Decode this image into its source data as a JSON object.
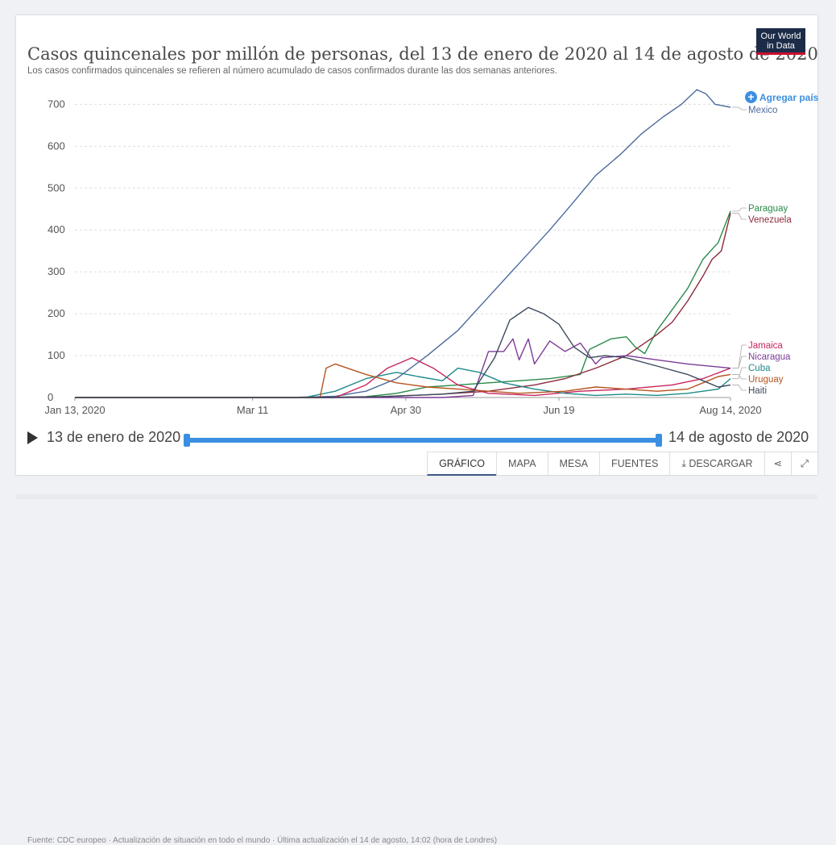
{
  "header": {
    "title": "Casos quincenales por millón de personas, del 13 de enero de 2020 al 14 de agosto de 2020",
    "subtitle": "Los casos confirmados quincenales se refieren al número acumulado de casos confirmados durante las dos semanas anteriores.",
    "logo_line1": "Our World",
    "logo_line2": "in Data",
    "add_country": "Agregar país"
  },
  "timeline": {
    "start_label": "13 de enero de 2020",
    "end_label": "14 de agosto de 2020",
    "source": "Fuente: CDC europeo · Actualización de situación en todo el mundo · Última actualización el 14 de agosto, 14:02 (hora de Londres)"
  },
  "tabs": {
    "chart": "GRÁFICO",
    "map": "MAPA",
    "table": "MESA",
    "sources": "FUENTES",
    "download": "DESCARGAR"
  },
  "chart_data": {
    "type": "line",
    "x_ticks": [
      "Jan 13, 2020",
      "Mar 11",
      "Apr 30",
      "Jun 19",
      "Aug 14, 2020"
    ],
    "x_tick_days": [
      0,
      58,
      108,
      158,
      214
    ],
    "xlim": [
      0,
      214
    ],
    "ylim": [
      0,
      720
    ],
    "y_ticks": [
      0,
      100,
      200,
      300,
      400,
      500,
      600,
      700
    ],
    "grid": true,
    "series": [
      {
        "name": "Mexico",
        "color": "#4c6a9c",
        "points": [
          [
            0,
            0
          ],
          [
            70,
            0
          ],
          [
            85,
            3
          ],
          [
            95,
            15
          ],
          [
            105,
            45
          ],
          [
            115,
            100
          ],
          [
            125,
            160
          ],
          [
            135,
            240
          ],
          [
            145,
            320
          ],
          [
            155,
            400
          ],
          [
            162,
            460
          ],
          [
            170,
            530
          ],
          [
            178,
            580
          ],
          [
            185,
            630
          ],
          [
            192,
            670
          ],
          [
            198,
            700
          ],
          [
            203,
            735
          ],
          [
            206,
            725
          ],
          [
            209,
            700
          ],
          [
            214,
            693
          ]
        ]
      },
      {
        "name": "Paraguay",
        "color": "#2a8a4a",
        "points": [
          [
            0,
            0
          ],
          [
            80,
            0
          ],
          [
            95,
            2
          ],
          [
            105,
            10
          ],
          [
            115,
            25
          ],
          [
            125,
            30
          ],
          [
            135,
            35
          ],
          [
            145,
            40
          ],
          [
            155,
            45
          ],
          [
            165,
            55
          ],
          [
            168,
            115
          ],
          [
            175,
            140
          ],
          [
            180,
            145
          ],
          [
            183,
            120
          ],
          [
            186,
            105
          ],
          [
            190,
            160
          ],
          [
            195,
            210
          ],
          [
            200,
            260
          ],
          [
            205,
            330
          ],
          [
            210,
            370
          ],
          [
            214,
            445
          ]
        ]
      },
      {
        "name": "Venezuela",
        "color": "#8b2a3a",
        "points": [
          [
            0,
            0
          ],
          [
            80,
            0
          ],
          [
            100,
            2
          ],
          [
            120,
            8
          ],
          [
            135,
            15
          ],
          [
            150,
            30
          ],
          [
            160,
            45
          ],
          [
            170,
            70
          ],
          [
            180,
            100
          ],
          [
            190,
            150
          ],
          [
            195,
            180
          ],
          [
            200,
            230
          ],
          [
            205,
            290
          ],
          [
            208,
            330
          ],
          [
            211,
            350
          ],
          [
            214,
            440
          ]
        ]
      },
      {
        "name": "Jamaica",
        "color": "#c9245e",
        "points": [
          [
            0,
            0
          ],
          [
            85,
            0
          ],
          [
            95,
            30
          ],
          [
            102,
            70
          ],
          [
            110,
            95
          ],
          [
            117,
            70
          ],
          [
            125,
            30
          ],
          [
            135,
            10
          ],
          [
            150,
            5
          ],
          [
            165,
            15
          ],
          [
            180,
            20
          ],
          [
            195,
            30
          ],
          [
            205,
            45
          ],
          [
            214,
            70
          ]
        ]
      },
      {
        "name": "Nicaragua",
        "color": "#7d3c98",
        "points": [
          [
            0,
            0
          ],
          [
            100,
            0
          ],
          [
            120,
            0
          ],
          [
            130,
            5
          ],
          [
            135,
            110
          ],
          [
            140,
            110
          ],
          [
            143,
            140
          ],
          [
            145,
            90
          ],
          [
            148,
            140
          ],
          [
            150,
            80
          ],
          [
            155,
            135
          ],
          [
            160,
            110
          ],
          [
            165,
            130
          ],
          [
            170,
            80
          ],
          [
            172,
            95
          ],
          [
            180,
            100
          ],
          [
            190,
            90
          ],
          [
            200,
            80
          ],
          [
            214,
            70
          ]
        ]
      },
      {
        "name": "Cuba",
        "color": "#1f8a8a",
        "points": [
          [
            0,
            0
          ],
          [
            75,
            0
          ],
          [
            85,
            15
          ],
          [
            95,
            45
          ],
          [
            105,
            60
          ],
          [
            112,
            50
          ],
          [
            120,
            40
          ],
          [
            125,
            70
          ],
          [
            132,
            60
          ],
          [
            140,
            35
          ],
          [
            150,
            20
          ],
          [
            160,
            10
          ],
          [
            170,
            5
          ],
          [
            180,
            8
          ],
          [
            190,
            5
          ],
          [
            200,
            10
          ],
          [
            210,
            20
          ],
          [
            214,
            45
          ]
        ]
      },
      {
        "name": "Uruguay",
        "color": "#b5541e",
        "points": [
          [
            0,
            0
          ],
          [
            80,
            0
          ],
          [
            82,
            70
          ],
          [
            85,
            80
          ],
          [
            95,
            55
          ],
          [
            105,
            35
          ],
          [
            115,
            25
          ],
          [
            125,
            20
          ],
          [
            135,
            15
          ],
          [
            145,
            10
          ],
          [
            160,
            15
          ],
          [
            170,
            25
          ],
          [
            180,
            20
          ],
          [
            190,
            15
          ],
          [
            200,
            20
          ],
          [
            205,
            35
          ],
          [
            210,
            50
          ],
          [
            214,
            55
          ]
        ]
      },
      {
        "name": "Haiti",
        "color": "#3d4a5c",
        "points": [
          [
            0,
            0
          ],
          [
            85,
            0
          ],
          [
            100,
            2
          ],
          [
            110,
            5
          ],
          [
            120,
            8
          ],
          [
            130,
            15
          ],
          [
            137,
            95
          ],
          [
            142,
            185
          ],
          [
            148,
            215
          ],
          [
            153,
            200
          ],
          [
            158,
            175
          ],
          [
            163,
            120
          ],
          [
            168,
            95
          ],
          [
            173,
            100
          ],
          [
            180,
            95
          ],
          [
            190,
            75
          ],
          [
            200,
            55
          ],
          [
            205,
            40
          ],
          [
            210,
            25
          ],
          [
            214,
            30
          ]
        ]
      }
    ]
  }
}
